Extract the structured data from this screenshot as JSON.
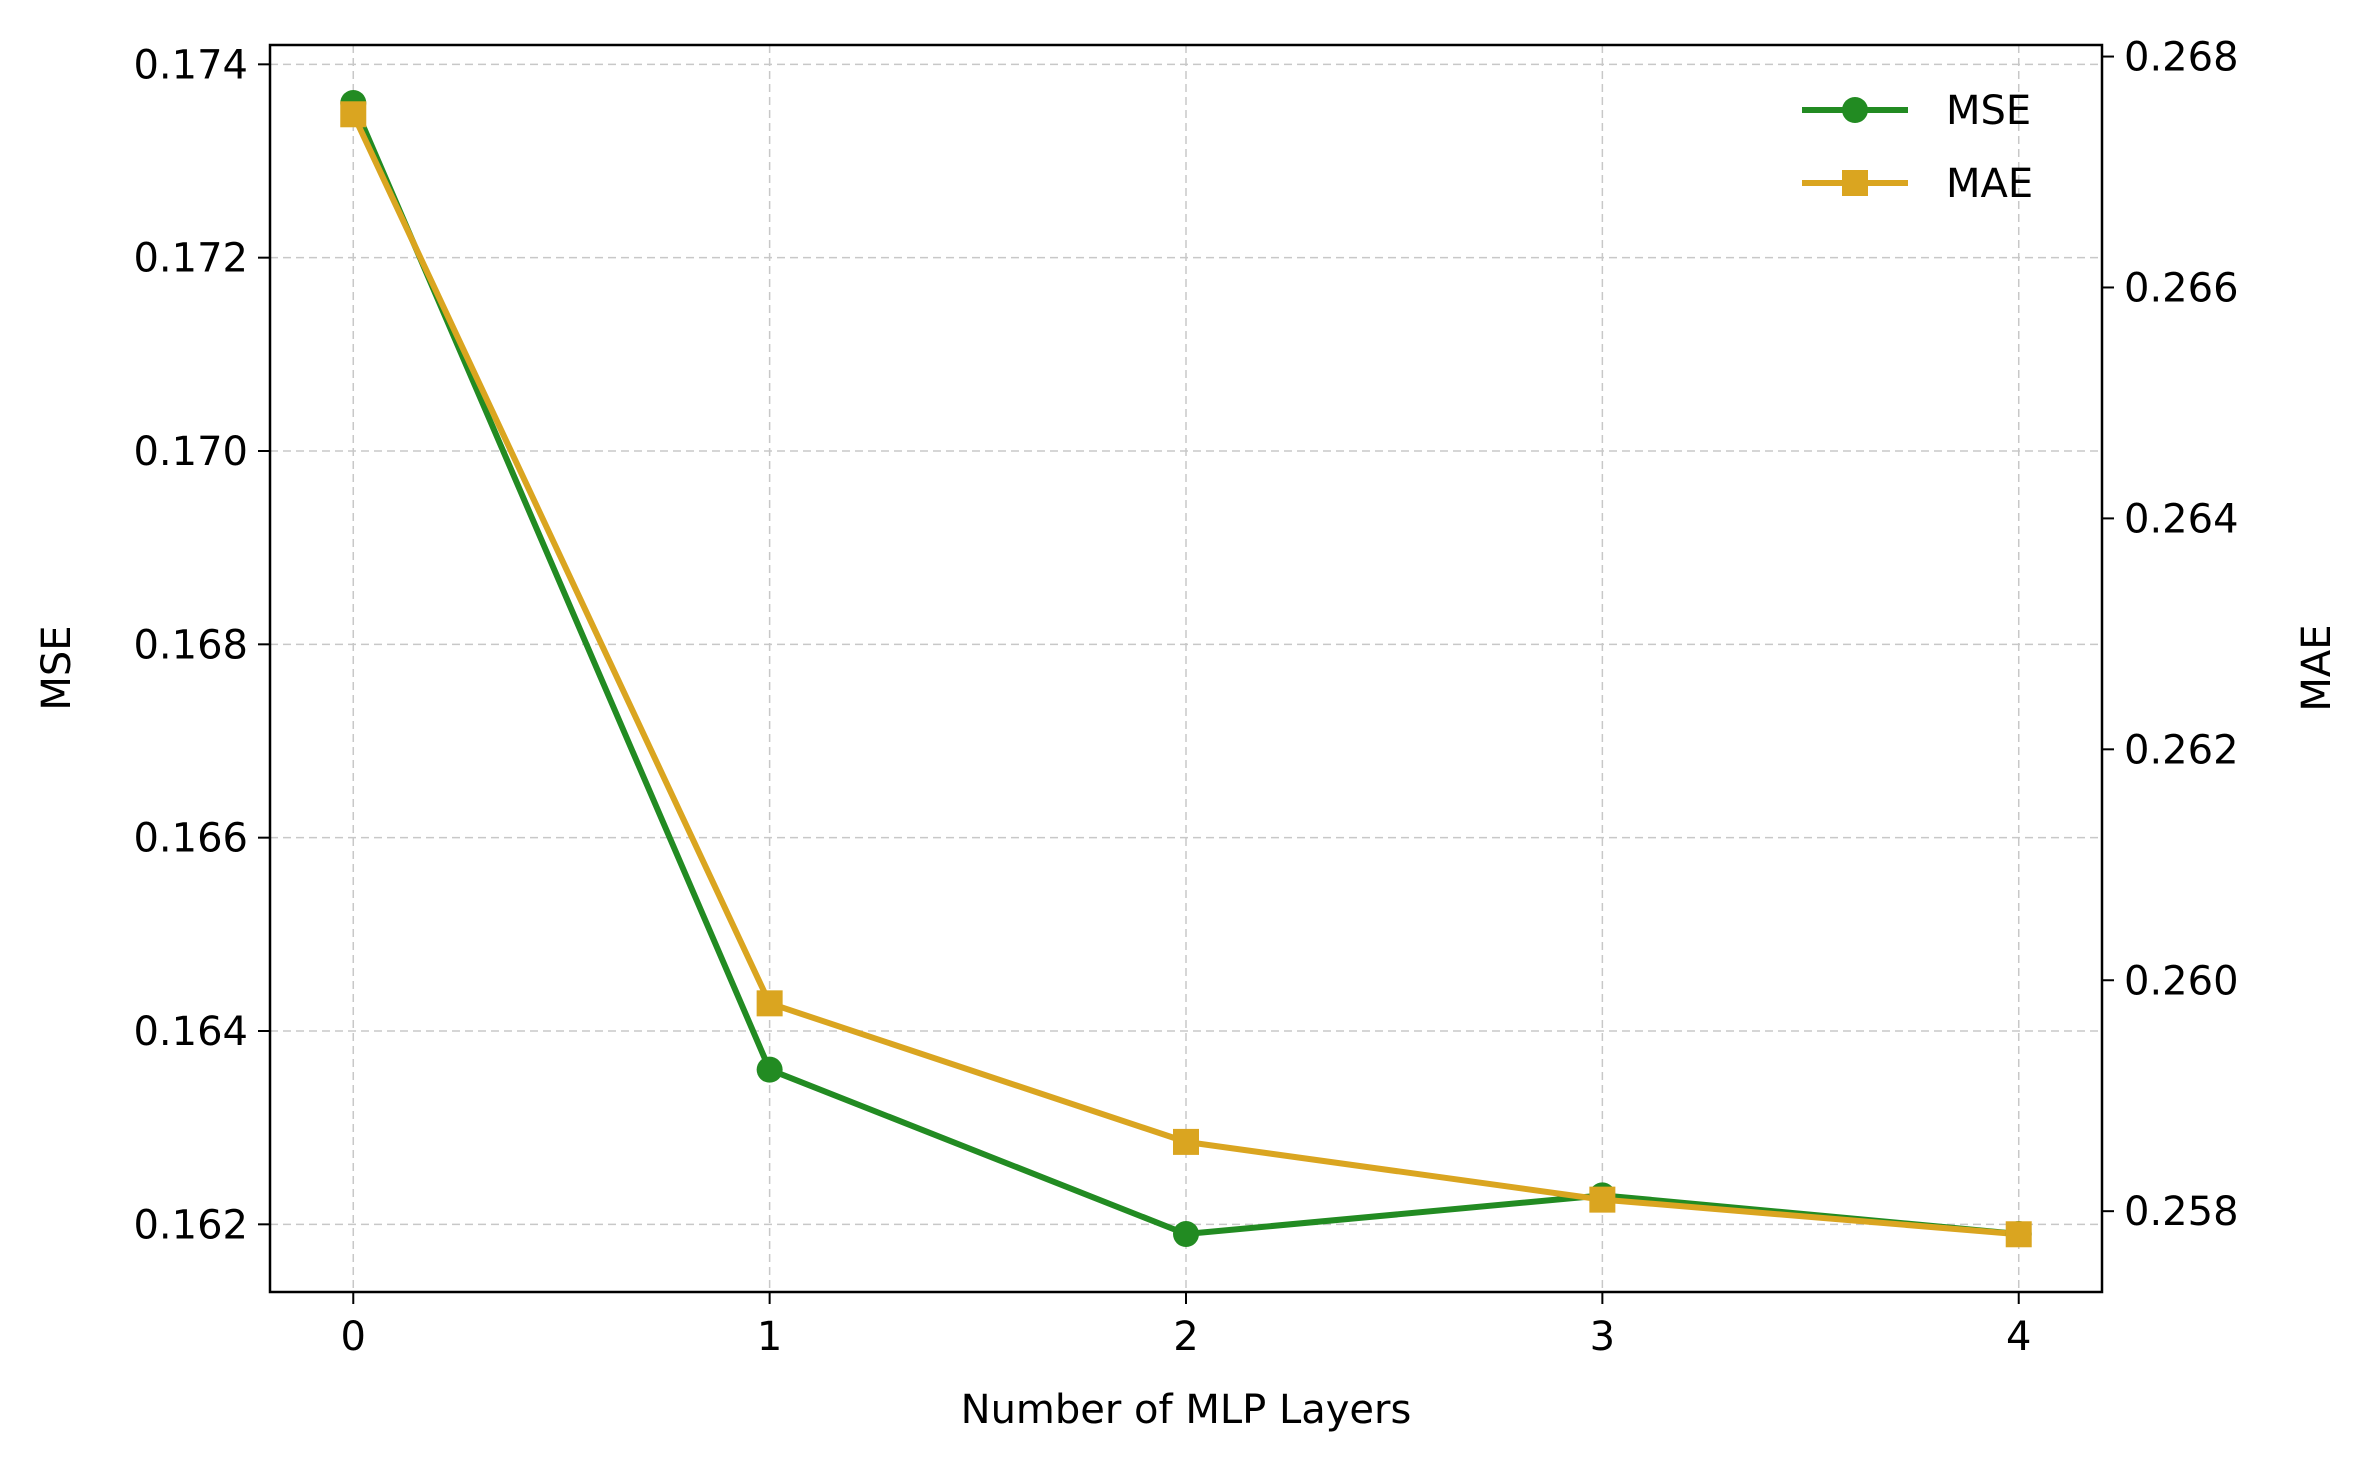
{
  "chart_data": {
    "type": "line",
    "xlabel": "Number of MLP Layers",
    "ylabel_left": "MSE",
    "ylabel_right": "MAE",
    "x": [
      0,
      1,
      2,
      3,
      4
    ],
    "x_ticks": [
      "0",
      "1",
      "2",
      "3",
      "4"
    ],
    "xlim": [
      -0.2,
      4.2
    ],
    "ylim_left": [
      0.1613,
      0.1742
    ],
    "ylim_right": [
      0.2573,
      0.2681
    ],
    "y_ticks_left": [
      "0.162",
      "0.164",
      "0.166",
      "0.168",
      "0.170",
      "0.172",
      "0.174"
    ],
    "y_ticks_right": [
      "0.258",
      "0.260",
      "0.262",
      "0.264",
      "0.266",
      "0.268"
    ],
    "grid": true,
    "legend_position": "top-right",
    "series": [
      {
        "name": "MSE",
        "axis": "left",
        "marker": "circle",
        "color": "#228b22",
        "values": [
          0.1736,
          0.1636,
          0.1619,
          0.1623,
          0.1619
        ]
      },
      {
        "name": "MAE",
        "axis": "right",
        "marker": "square",
        "color": "#daa520",
        "values": [
          0.2675,
          0.2598,
          0.2586,
          0.2581,
          0.2578
        ]
      }
    ]
  }
}
